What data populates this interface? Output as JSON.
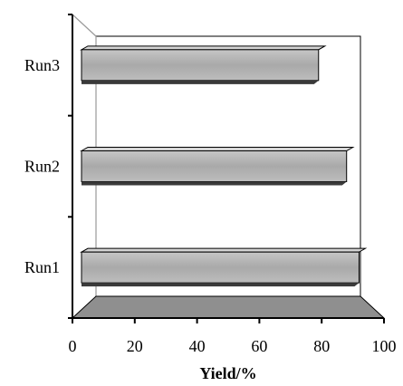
{
  "chart_data": {
    "type": "bar",
    "orientation": "horizontal",
    "categories": [
      "Run1",
      "Run2",
      "Run3"
    ],
    "values": [
      92,
      88,
      79
    ],
    "xlabel": "Yield/%",
    "ylabel": "",
    "xlim": [
      0,
      100
    ],
    "xticks": [
      "0",
      "20",
      "40",
      "60",
      "80",
      "100"
    ],
    "grid": false,
    "legend": "none",
    "three_d": true,
    "colors": {
      "bar_face": "#b3b3b3",
      "bar_top": "#d4d4d4",
      "bar_bottom": "#3a3a3a",
      "floor": "#8f8f8f",
      "axis": "#000000",
      "wall_line": "#9a9a9a"
    }
  }
}
